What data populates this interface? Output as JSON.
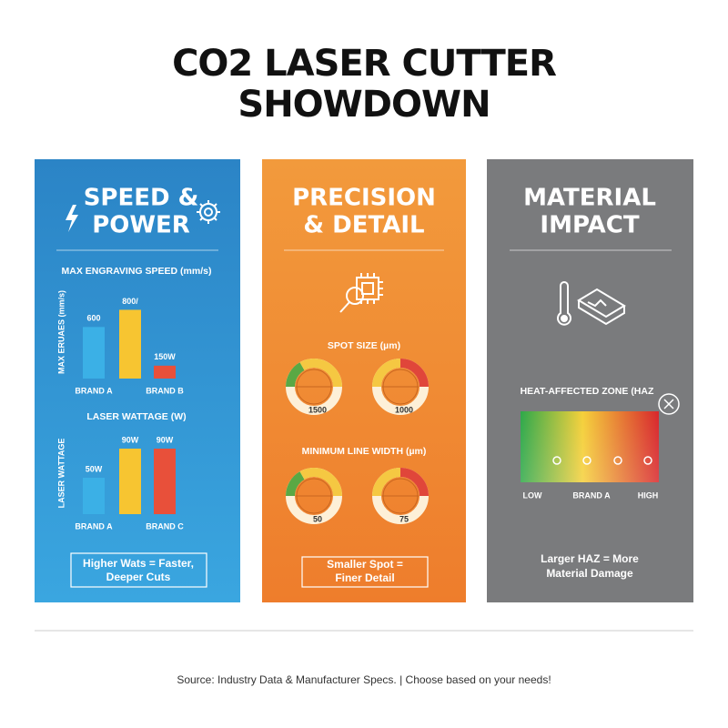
{
  "title": [
    "CO2 LASER CUTTER",
    "SHOWDOWN"
  ],
  "panels": [
    {
      "title": [
        "SPEED &",
        "POWER"
      ],
      "charts": [
        {
          "title": "MAX ENGRAVING SPEED (mm/s)",
          "y_label": "MAX ERUAES (mm/s)",
          "categories": [
            "BRAND A",
            null,
            "BRAND B"
          ],
          "values": [
            600,
            800,
            150
          ],
          "value_labels": [
            "600",
            "800/",
            "150W"
          ],
          "ylim": [
            0,
            900
          ],
          "colors": [
            "#3bb0e6",
            "#f7c531",
            "#e8503a"
          ]
        },
        {
          "title": "LASER WATTAGE (W)",
          "y_label": "LASER WATTAGE",
          "categories": [
            "BRAND A",
            null,
            "BRAND C"
          ],
          "values": [
            50,
            90,
            90
          ],
          "value_labels": [
            "50W",
            "90W",
            "90W"
          ],
          "ylim": [
            0,
            100
          ],
          "colors": [
            "#3bb0e6",
            "#f7c531",
            "#e8503a"
          ]
        }
      ],
      "note": [
        "Higher Wats = Faster,",
        "Deeper Cuts"
      ]
    },
    {
      "title": [
        "PRECISION",
        "& DETAIL"
      ],
      "sections": [
        {
          "title": "SPOT SIZE (µm)",
          "gauges": [
            1500,
            1000
          ]
        },
        {
          "title": "MINIMUM LINE WIDTH (µm)",
          "gauges": [
            50,
            75
          ]
        }
      ],
      "note": [
        "Smaller Spot =",
        "Finer Detail"
      ]
    },
    {
      "title": [
        "MATERIAL",
        "IMPACT"
      ],
      "heat_zone": {
        "title": "HEAT-AFFECTED ZONE (HAZ",
        "scale_labels": [
          "LOW",
          "BRAND A",
          "HIGH"
        ]
      },
      "note": [
        "Larger HAZ = More",
        "Material Damage"
      ]
    }
  ],
  "source": "Source: Industry Data & Manufacturer Specs. | Choose based on your needs!"
}
